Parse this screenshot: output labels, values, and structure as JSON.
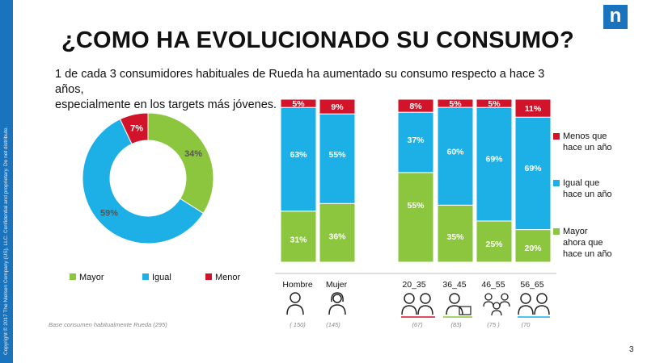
{
  "side_text": "Copyright © 2017 The Nielsen Company (US), LLC. Confidential and proprietary. Do not distribute.",
  "logo_letter": "n",
  "title": "¿COMO HA EVOLUCIONADO SU CONSUMO?",
  "subtitle_line1": "1 de cada 3 consumidores habituales de Rueda ha aumentado su consumo  respecto a hace 3 años,",
  "subtitle_line2": "especialmente en los targets más jóvenes.",
  "base_label": "Base  consumen habitualmente Rueda   (295)",
  "page_number": "3",
  "colors": {
    "mayor": "#8cc63f",
    "igual": "#1cb0e6",
    "menor": "#d2142a",
    "brand": "#1a73bd"
  },
  "donut_legend": [
    "Mayor",
    "Igual",
    "Menor"
  ],
  "right_legend": {
    "menor": [
      "Menos que",
      "hace un año"
    ],
    "igual": [
      "Igual que",
      "hace un año"
    ],
    "mayor": [
      "Mayor",
      "ahora que",
      "hace un año"
    ]
  },
  "sample_sizes": [
    "( 150)",
    "(145)",
    "(67)",
    "(83)",
    "(75 )",
    "(70"
  ],
  "icons": [
    "man-icon",
    "woman-icon",
    "young-couple-icon",
    "worker-icon",
    "family-icon",
    "elderly-couple-icon"
  ],
  "chart_data": [
    {
      "type": "pie",
      "labels": [
        "Mayor",
        "Igual",
        "Menor"
      ],
      "values": [
        34,
        59,
        7
      ],
      "value_labels": [
        "34%",
        "59%",
        "7%"
      ]
    },
    {
      "type": "bar",
      "stacked": true,
      "categories": [
        "Hombre",
        "Mujer",
        "20_35",
        "36_45",
        "46_55",
        "56_65"
      ],
      "series": [
        {
          "name": "Mayor ahora que hace un año",
          "values": [
            31,
            36,
            55,
            35,
            25,
            20
          ],
          "labels": [
            "31%",
            "36%",
            "55%",
            "35%",
            "25%",
            "20%"
          ]
        },
        {
          "name": "Igual que hace un año",
          "values": [
            63,
            55,
            37,
            60,
            69,
            69
          ],
          "labels": [
            "63%",
            "55%",
            "37%",
            "60%",
            "69%",
            "69%"
          ]
        },
        {
          "name": "Menos que hace un año",
          "values": [
            5,
            9,
            8,
            5,
            5,
            11
          ],
          "labels": [
            "5%",
            "9%",
            "8%",
            "5%",
            "5%",
            "11%"
          ]
        }
      ],
      "ylim": [
        0,
        100
      ]
    }
  ]
}
